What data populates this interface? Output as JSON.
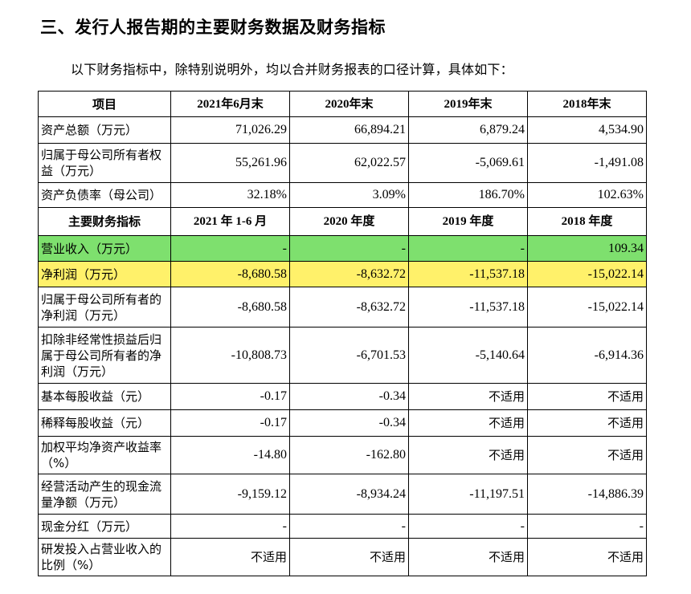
{
  "heading": "三、发行人报告期的主要财务数据及财务指标",
  "intro": "以下财务指标中，除特别说明外，均以合并财务报表的口径计算，具体如下：",
  "table": {
    "header1": [
      "项目",
      "2021年6月末",
      "2020年末",
      "2019年末",
      "2018年末"
    ],
    "balance_rows": [
      {
        "label": "资产总额（万元）",
        "values": [
          "71,026.29",
          "66,894.21",
          "6,879.24",
          "4,534.90"
        ]
      },
      {
        "label": "归属于母公司所有者权益（万元）",
        "values": [
          "55,261.96",
          "62,022.57",
          "-5,069.61",
          "-1,491.08"
        ]
      },
      {
        "label": "资产负债率（母公司）",
        "values": [
          "32.18%",
          "3.09%",
          "186.70%",
          "102.63%"
        ]
      }
    ],
    "header2": [
      "主要财务指标",
      "2021 年 1-6 月",
      "2020 年度",
      "2019 年度",
      "2018 年度"
    ],
    "indicator_rows": [
      {
        "label": "营业收入（万元）",
        "values": [
          "-",
          "-",
          "-",
          "109.34"
        ],
        "highlight": "#7ee06e"
      },
      {
        "label": "净利润（万元）",
        "values": [
          "-8,680.58",
          "-8,632.72",
          "-11,537.18",
          "-15,022.14"
        ],
        "highlight": "#fff16a"
      },
      {
        "label": "归属于母公司所有者的净利润（万元）",
        "values": [
          "-8,680.58",
          "-8,632.72",
          "-11,537.18",
          "-15,022.14"
        ]
      },
      {
        "label": "扣除非经常性损益后归属于母公司所有者的净利润（万元）",
        "values": [
          "-10,808.73",
          "-6,701.53",
          "-5,140.64",
          "-6,914.36"
        ]
      },
      {
        "label": "基本每股收益（元）",
        "values": [
          "-0.17",
          "-0.34",
          "不适用",
          "不适用"
        ]
      },
      {
        "label": "稀释每股收益（元）",
        "values": [
          "-0.17",
          "-0.34",
          "不适用",
          "不适用"
        ]
      },
      {
        "label": "加权平均净资产收益率（%）",
        "values": [
          "-14.80",
          "-162.80",
          "不适用",
          "不适用"
        ]
      },
      {
        "label": "经营活动产生的现金流量净额（万元）",
        "values": [
          "-9,159.12",
          "-8,934.24",
          "-11,197.51",
          "-14,886.39"
        ]
      },
      {
        "label": "现金分红（万元）",
        "values": [
          "-",
          "-",
          "-",
          "-"
        ]
      },
      {
        "label": "研发投入占营业收入的比例（%）",
        "values": [
          "不适用",
          "不适用",
          "不适用",
          "不适用"
        ]
      }
    ]
  }
}
